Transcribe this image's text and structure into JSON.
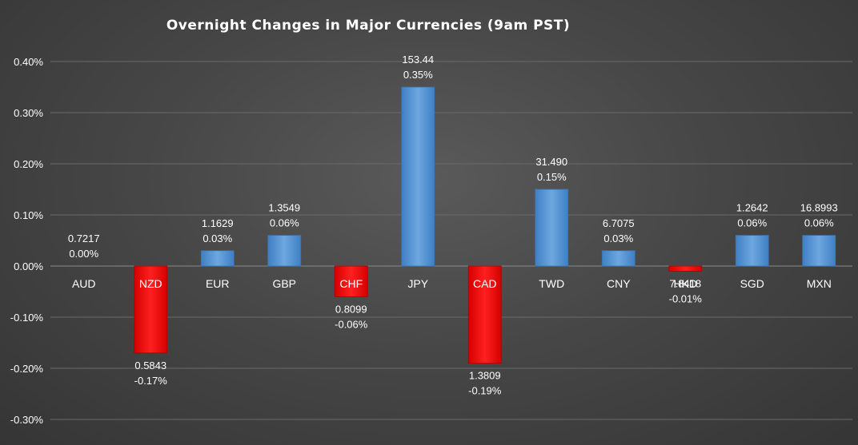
{
  "chart_data": {
    "type": "bar",
    "title": "Overnight Changes in Major Currencies (9am PST)",
    "xlabel": "",
    "ylabel": "",
    "ylim": [
      -0.003,
      0.004
    ],
    "y_ticks": [
      0.004,
      0.003,
      0.002,
      0.001,
      0.0,
      -0.001,
      -0.002,
      -0.003
    ],
    "y_tick_labels": [
      "0.40%",
      "0.30%",
      "0.20%",
      "0.10%",
      "0.00%",
      "-0.10%",
      "-0.20%",
      "-0.30%"
    ],
    "grid": true,
    "legend": "none",
    "categories": [
      "AUD",
      "NZD",
      "EUR",
      "GBP",
      "CHF",
      "JPY",
      "CAD",
      "TWD",
      "CNY",
      "HKD",
      "SGD",
      "MXN"
    ],
    "values": [
      0.0,
      -0.0017,
      0.0003,
      0.0006,
      -0.0006,
      0.0035,
      -0.0019,
      0.0015,
      0.0003,
      -0.0001,
      0.0006,
      0.0006
    ],
    "rates": [
      "0.7217",
      "0.5843",
      "1.1629",
      "1.3549",
      "0.8099",
      "153.44",
      "1.3809",
      "31.490",
      "6.7075",
      "7.8418",
      "1.2642",
      "16.8993"
    ],
    "pct_labels": [
      "0.00%",
      "-0.17%",
      "0.03%",
      "0.06%",
      "-0.06%",
      "0.35%",
      "-0.19%",
      "0.15%",
      "0.03%",
      "-0.01%",
      "0.06%",
      "0.06%"
    ],
    "colors": {
      "positive": "#5b9bd5",
      "negative": "#ff0000",
      "negative_category_text": "#ffffff",
      "text": "#ffffff",
      "grid": "#6a6a6a"
    }
  }
}
